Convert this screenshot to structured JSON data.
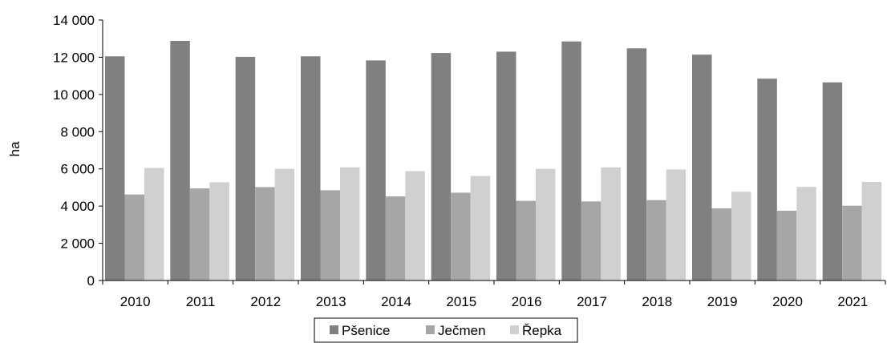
{
  "chart_data": {
    "type": "bar",
    "title": "",
    "xlabel": "",
    "ylabel": "ha",
    "ylim": [
      0,
      14000
    ],
    "y_ticks": [
      "0",
      "2 000",
      "4 000",
      "6 000",
      "8 000",
      "10 000",
      "12 000",
      "14 000"
    ],
    "y_tick_values": [
      0,
      2000,
      4000,
      6000,
      8000,
      10000,
      12000,
      14000
    ],
    "grid": false,
    "legend_position": "bottom",
    "categories": [
      "2010",
      "2011",
      "2012",
      "2013",
      "2014",
      "2015",
      "2016",
      "2017",
      "2018",
      "2019",
      "2020",
      "2021"
    ],
    "series": [
      {
        "name": "Pšenice",
        "color": "#808080",
        "values": [
          12050,
          12880,
          12020,
          12050,
          11830,
          12230,
          12300,
          12850,
          12480,
          12140,
          10850,
          10650
        ]
      },
      {
        "name": "Ječmen",
        "color": "#a6a6a6",
        "values": [
          4620,
          4950,
          5020,
          4850,
          4520,
          4720,
          4280,
          4250,
          4320,
          3880,
          3750,
          4020
        ]
      },
      {
        "name": "Řepka",
        "color": "#d0d0d0",
        "values": [
          6050,
          5280,
          6000,
          6080,
          5880,
          5620,
          6000,
          6080,
          5970,
          4770,
          5030,
          5300
        ]
      }
    ]
  }
}
